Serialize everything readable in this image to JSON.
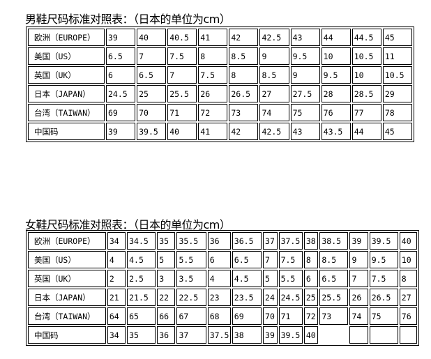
{
  "mens_table": {
    "title": "男鞋尺码标准对照表：（日本的单位为cm）",
    "rows": [
      {
        "label": "欧洲（EUROPE）",
        "values": [
          "39",
          "40",
          "40.5",
          "41",
          "42",
          "42.5",
          "43",
          "44",
          "44.5",
          "45"
        ]
      },
      {
        "label": "美国（US）",
        "values": [
          "6.5",
          "7",
          "7.5",
          "8",
          "8.5",
          "9",
          "9.5",
          "10",
          "10.5",
          "11"
        ]
      },
      {
        "label": "英国（UK）",
        "values": [
          "6",
          "6.5",
          "7",
          "7.5",
          "8",
          "8.5",
          "9",
          "9.5",
          "10",
          "10.5"
        ]
      },
      {
        "label": "日本（JAPAN）",
        "values": [
          "24.5",
          "25",
          "25.5",
          "26",
          "26.5",
          "27",
          "27.5",
          "28",
          "28.5",
          "29"
        ]
      },
      {
        "label": "台湾（TAIWAN）",
        "values": [
          "69",
          "70",
          "71",
          "72",
          "73",
          "74",
          "75",
          "76",
          "77",
          "78"
        ]
      },
      {
        "label": "中国码",
        "values": [
          "39",
          "39.5",
          "40",
          "41",
          "42",
          "42.5",
          "43",
          "43.5",
          "44",
          "45"
        ]
      }
    ]
  },
  "womens_table": {
    "title": "女鞋尺码标准对照表：（日本的单位为cm）",
    "rows": [
      {
        "label": "欧洲（EUROPE）",
        "values": [
          "34",
          "34.5",
          "35",
          "35.5",
          "36",
          "36.5",
          "37",
          "37.5",
          "38",
          "38.5",
          "39",
          "39.5",
          "40"
        ]
      },
      {
        "label": "美国（US）",
        "values": [
          "4",
          "4.5",
          "5",
          "5.5",
          "6",
          "6.5",
          "7",
          "7.5",
          "8",
          "8.5",
          "9",
          "9.5",
          "10"
        ]
      },
      {
        "label": "英国（UK）",
        "values": [
          "2",
          "2.5",
          "3",
          "3.5",
          "4",
          "4.5",
          "5",
          "5.5",
          "6",
          "6.5",
          "7",
          "7.5",
          "8"
        ]
      },
      {
        "label": "日本（JAPAN）",
        "values": [
          "21",
          "21.5",
          "22",
          "22.5",
          "23",
          "23.5",
          "24",
          "24.5",
          "25",
          "25.5",
          "26",
          "26.5",
          "27"
        ]
      },
      {
        "label": "台湾（TAIWAN）",
        "values": [
          "64",
          "65",
          "66",
          "67",
          "68",
          "69",
          "70",
          "71",
          "72",
          "73",
          "74",
          "75",
          "76"
        ]
      },
      {
        "label": "中国码",
        "values": [
          "34",
          "35",
          "36",
          "37",
          "37.5",
          "38",
          "39",
          "39.5",
          "40",
          "",
          "",
          "",
          ""
        ]
      }
    ]
  }
}
